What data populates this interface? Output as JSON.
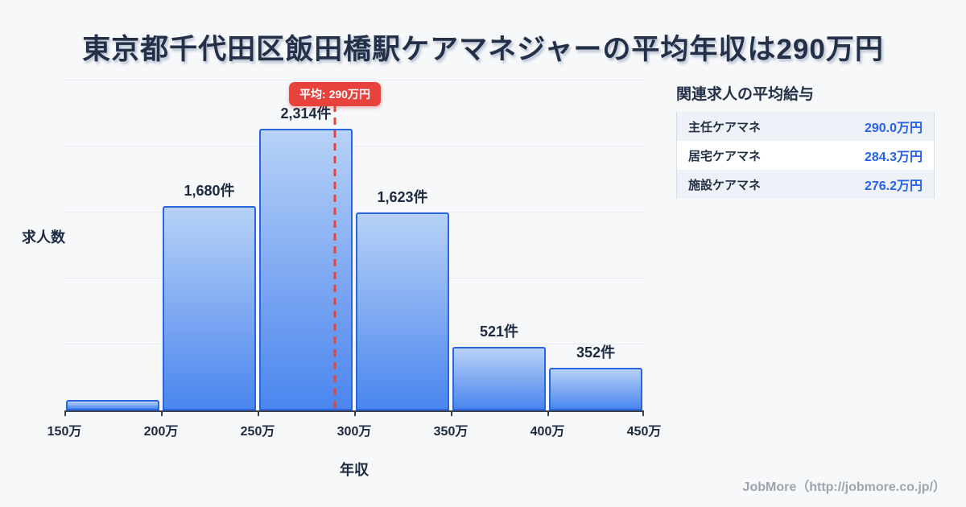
{
  "title": "東京都千代田区飯田橋駅ケアマネジャーの平均年収は290万円",
  "chart_data": {
    "type": "bar",
    "subtype": "histogram",
    "x_ticks": [
      "150万",
      "200万",
      "250万",
      "300万",
      "350万",
      "400万",
      "450万"
    ],
    "x_min": 150,
    "x_max": 450,
    "values": [
      85,
      1680,
      2314,
      1623,
      521,
      352
    ],
    "bar_labels": [
      "",
      "1,680件",
      "2,314件",
      "1,623件",
      "521件",
      "352件"
    ],
    "ylim": [
      0,
      2710
    ],
    "grid": true,
    "gridline_count": 5,
    "xlabel": "年収",
    "ylabel": "求人数",
    "average": {
      "value": 290,
      "label": "平均: 290万円"
    },
    "colors": {
      "bar_fill_top": "#b7d2f7",
      "bar_fill_bottom": "#4a86ef",
      "bar_border": "#2b66e0",
      "average_red": "#e8423d",
      "axis": "#3a4353",
      "label_navy": "#1d2940"
    }
  },
  "side_panel": {
    "heading": "関連求人の平均給与",
    "rows": [
      {
        "label": "主任ケアマネ",
        "value": "290.0万円"
      },
      {
        "label": "居宅ケアマネ",
        "value": "284.3万円"
      },
      {
        "label": "施設ケアマネ",
        "value": "276.2万円"
      }
    ],
    "value_color": "#2563eb"
  },
  "footer": {
    "credit": "JobMore（http://jobmore.co.jp/）"
  }
}
